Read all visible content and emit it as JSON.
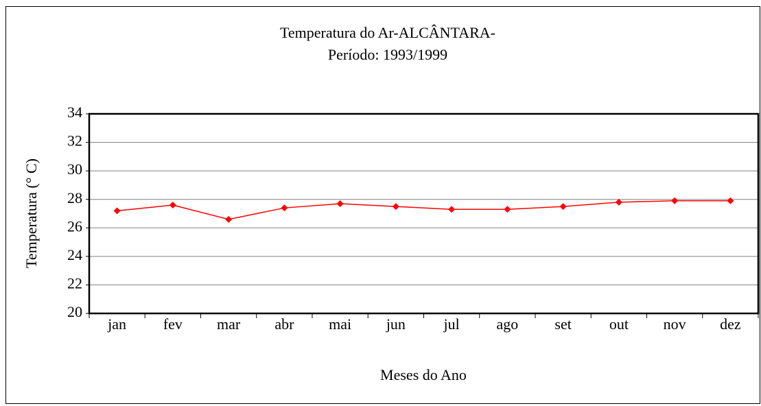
{
  "chart_data": {
    "type": "line",
    "title": "Temperatura do Ar-ALCÂNTARA-",
    "subtitle": "Período: 1993/1999",
    "x_label": "Meses do Ano",
    "y_label": "Temperatura (° C)",
    "categories": [
      "jan",
      "fev",
      "mar",
      "abr",
      "mai",
      "jun",
      "jul",
      "ago",
      "set",
      "out",
      "nov",
      "dez"
    ],
    "series": [
      {
        "color": "#ff0000",
        "values": [
          27.2,
          27.6,
          26.6,
          27.4,
          27.7,
          27.5,
          27.3,
          27.3,
          27.5,
          27.8,
          27.9,
          27.9
        ]
      }
    ],
    "ylim": [
      20,
      34
    ],
    "yticks": [
      20,
      22,
      24,
      26,
      28,
      30,
      32,
      34
    ],
    "grid": true
  }
}
